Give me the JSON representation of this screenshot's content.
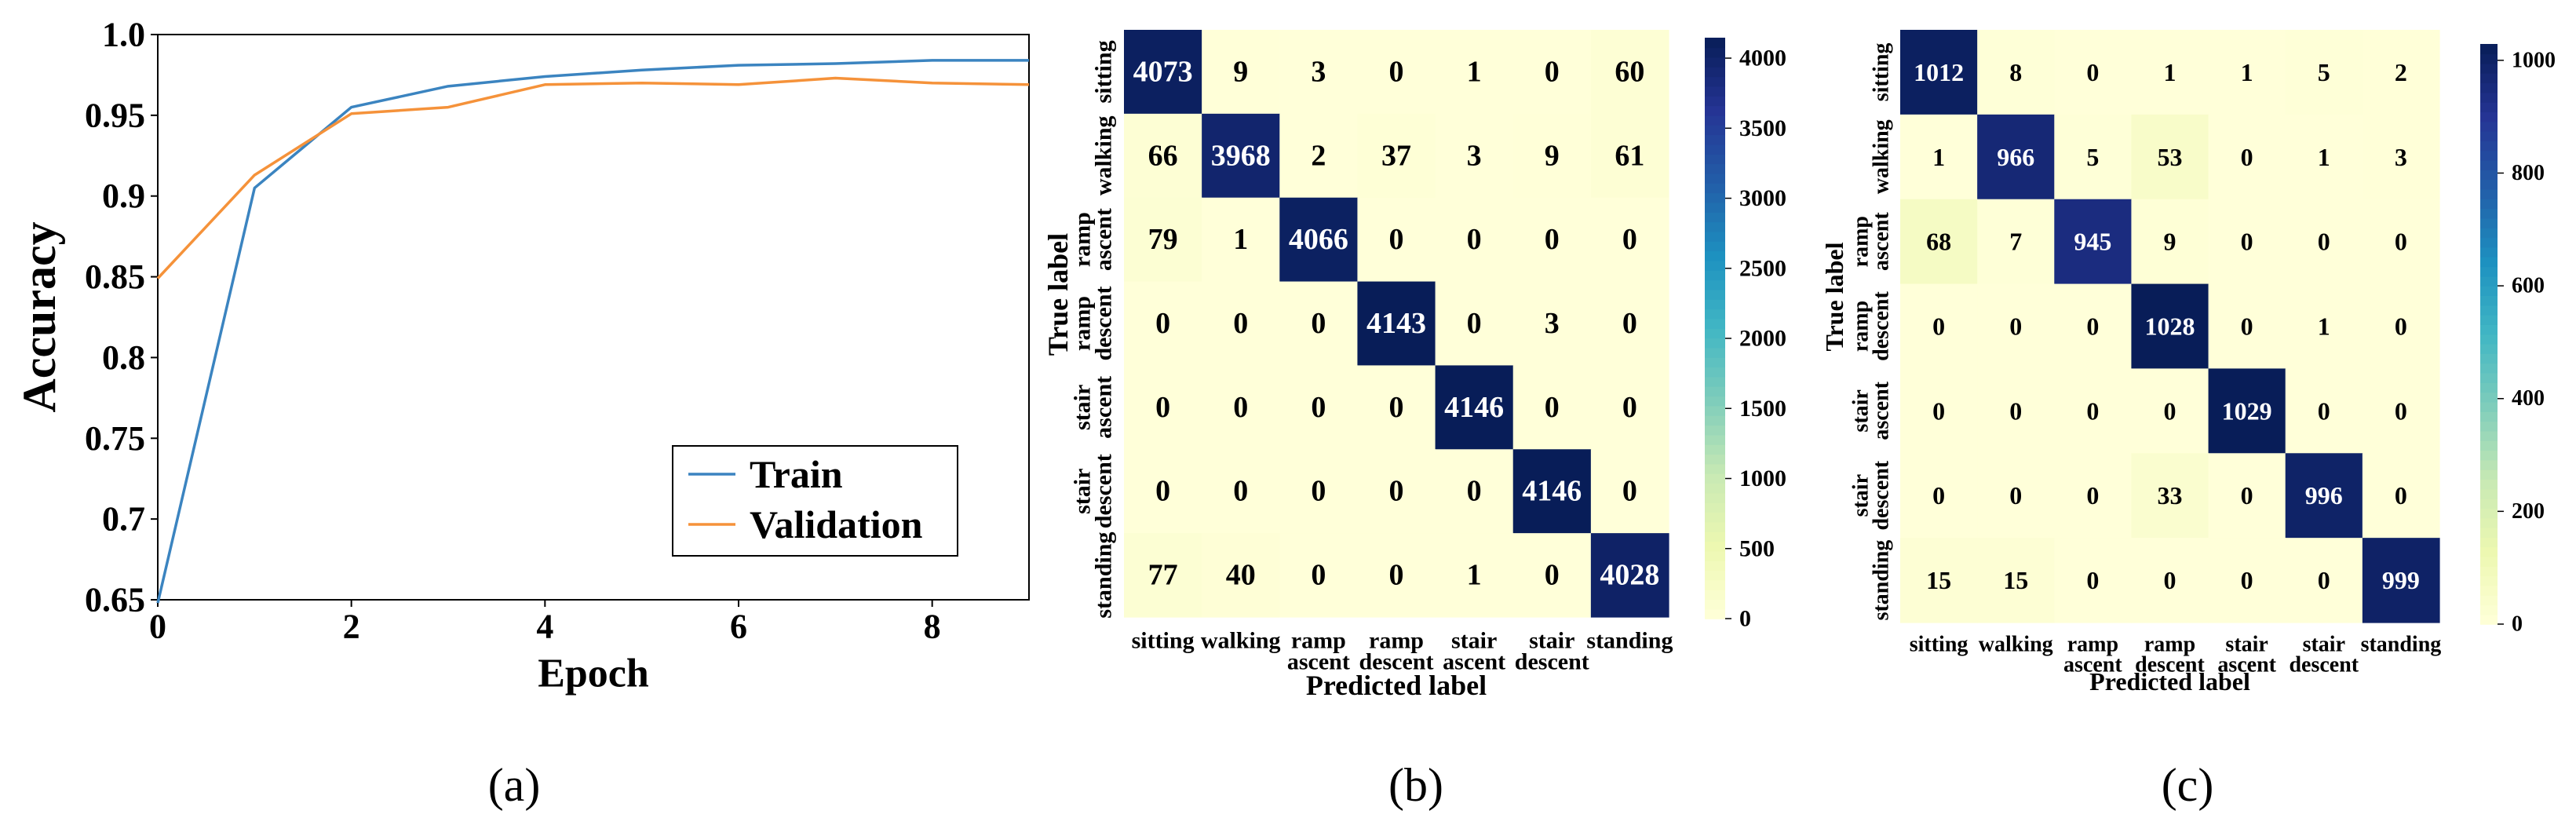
{
  "chart_data": [
    {
      "id": "a",
      "type": "line",
      "panel_label": "(a)",
      "title": "",
      "xlabel": "Epoch",
      "ylabel": "Accuracy",
      "xlim": [
        0,
        9
      ],
      "ylim": [
        0.65,
        1.0
      ],
      "x_ticks": [
        "0",
        "2",
        "4",
        "6",
        "8"
      ],
      "y_ticks": [
        "0.65",
        "0.7",
        "0.75",
        "0.8",
        "0.85",
        "0.9",
        "0.95",
        "1.0"
      ],
      "x": [
        0,
        1,
        2,
        3,
        4,
        5,
        6,
        7,
        8,
        9
      ],
      "series": [
        {
          "name": "Train",
          "color": "#3b84c0",
          "values": [
            0.648,
            0.905,
            0.955,
            0.968,
            0.974,
            0.978,
            0.981,
            0.982,
            0.984,
            0.984
          ]
        },
        {
          "name": "Validation",
          "color": "#f5923a",
          "values": [
            0.849,
            0.913,
            0.951,
            0.955,
            0.969,
            0.97,
            0.969,
            0.973,
            0.97,
            0.969
          ]
        }
      ],
      "legend_position": "bottom-right"
    },
    {
      "id": "b",
      "type": "heatmap",
      "panel_label": "(b)",
      "xlabel": "Predicted label",
      "ylabel": "True label",
      "col_labels": [
        [
          "sitting"
        ],
        [
          "walking"
        ],
        [
          "ramp",
          "ascent"
        ],
        [
          "ramp",
          "descent"
        ],
        [
          "stair",
          "ascent"
        ],
        [
          "stair",
          "descent"
        ],
        [
          "standing"
        ]
      ],
      "row_labels": [
        [
          "sitting"
        ],
        [
          "walking"
        ],
        [
          "ramp",
          "ascent"
        ],
        [
          "ramp",
          "descent"
        ],
        [
          "stair",
          "ascent"
        ],
        [
          "stair",
          "descent"
        ],
        [
          "standing"
        ]
      ],
      "matrix": [
        [
          4073,
          9,
          3,
          0,
          1,
          0,
          60
        ],
        [
          66,
          3968,
          2,
          37,
          3,
          9,
          61
        ],
        [
          79,
          1,
          4066,
          0,
          0,
          0,
          0
        ],
        [
          0,
          0,
          0,
          4143,
          0,
          3,
          0
        ],
        [
          0,
          0,
          0,
          0,
          4146,
          0,
          0
        ],
        [
          0,
          0,
          0,
          0,
          0,
          4146,
          0
        ],
        [
          77,
          40,
          0,
          0,
          1,
          0,
          4028
        ]
      ],
      "vmin": 0,
      "vmax": 4146,
      "colorbar_ticks": [
        "0",
        "500",
        "1000",
        "1500",
        "2000",
        "2500",
        "3000",
        "3500",
        "4000"
      ],
      "colorbar_values": [
        0,
        500,
        1000,
        1500,
        2000,
        2500,
        3000,
        3500,
        4000
      ],
      "colormap": "YlGnBu"
    },
    {
      "id": "c",
      "type": "heatmap",
      "panel_label": "(c)",
      "xlabel": "Predicted label",
      "ylabel": "True label",
      "col_labels": [
        [
          "sitting"
        ],
        [
          "walking"
        ],
        [
          "ramp",
          "ascent"
        ],
        [
          "ramp",
          "descent"
        ],
        [
          "stair",
          "ascent"
        ],
        [
          "stair",
          "descent"
        ],
        [
          "standing"
        ]
      ],
      "row_labels": [
        [
          "sitting"
        ],
        [
          "walking"
        ],
        [
          "ramp",
          "ascent"
        ],
        [
          "ramp",
          "descent"
        ],
        [
          "stair",
          "ascent"
        ],
        [
          "stair",
          "descent"
        ],
        [
          "standing"
        ]
      ],
      "matrix": [
        [
          1012,
          8,
          0,
          1,
          1,
          5,
          2
        ],
        [
          1,
          966,
          5,
          53,
          0,
          1,
          3
        ],
        [
          68,
          7,
          945,
          9,
          0,
          0,
          0
        ],
        [
          0,
          0,
          0,
          1028,
          0,
          1,
          0
        ],
        [
          0,
          0,
          0,
          0,
          1029,
          0,
          0
        ],
        [
          0,
          0,
          0,
          33,
          0,
          996,
          0
        ],
        [
          15,
          15,
          0,
          0,
          0,
          0,
          999
        ]
      ],
      "vmin": 0,
      "vmax": 1029,
      "colorbar_ticks": [
        "0",
        "200",
        "400",
        "600",
        "800",
        "1000"
      ],
      "colorbar_values": [
        0,
        200,
        400,
        600,
        800,
        1000
      ],
      "colormap": "YlGnBu"
    }
  ]
}
